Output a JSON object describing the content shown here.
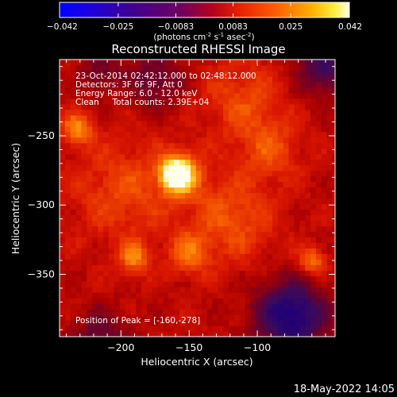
{
  "colorbar": {
    "ticks": [
      "-0.042",
      "-0.025",
      "-0.0083",
      "0.0083",
      "0.025",
      "0.042"
    ],
    "tick_values": [
      -0.042,
      -0.025,
      -0.0083,
      0.0083,
      0.025,
      0.042
    ],
    "range": [
      -0.042,
      0.042
    ],
    "colormap": "rainbow-like: blue-purple-red-orange-yellow-white",
    "units_parts": [
      "(photons cm",
      "-2",
      " s",
      "-1",
      " asec",
      "-2",
      ")"
    ]
  },
  "chart_data": {
    "type": "heatmap",
    "title": "Reconstructed RHESSI Image",
    "xlabel": "Heliocentric X (arcsec)",
    "ylabel": "Heliocentric Y (arcsec)",
    "xlim": [
      -245,
      -43
    ],
    "ylim": [
      -395,
      -195
    ],
    "xticks": [
      -200,
      -150,
      -100
    ],
    "xtick_labels": [
      "−200",
      "−150",
      "−100"
    ],
    "yticks": [
      -250,
      -300,
      -350
    ],
    "ytick_labels": [
      "−250",
      "−300",
      "−350"
    ],
    "peak": {
      "x": -160,
      "y": -278
    },
    "annotations": [
      "23-Oct-2014 02:42:12.000 to 02:48:12.000",
      "Detectors: 3F 6F 9F, Att 0",
      "Energy Range: 6.0 - 12.0 keV",
      "Clean     Total counts: 2.39E+04"
    ],
    "peak_label": "Position of Peak = [-160,-278]",
    "intensity_blobs": [
      {
        "x": -160,
        "y": -278,
        "value": 1.0,
        "sigma": 6
      },
      {
        "x": -157,
        "y": -277,
        "value": 0.85,
        "sigma": 11
      },
      {
        "x": -232,
        "y": -245,
        "value": 0.6,
        "sigma": 8
      },
      {
        "x": -198,
        "y": -290,
        "value": 0.35,
        "sigma": 25
      },
      {
        "x": -120,
        "y": -310,
        "value": 0.4,
        "sigma": 22
      },
      {
        "x": -190,
        "y": -338,
        "value": 0.55,
        "sigma": 8
      },
      {
        "x": -150,
        "y": -335,
        "value": 0.45,
        "sigma": 10
      },
      {
        "x": -60,
        "y": -340,
        "value": 0.55,
        "sigma": 7
      },
      {
        "x": -110,
        "y": -225,
        "value": 0.35,
        "sigma": 20
      },
      {
        "x": -90,
        "y": -260,
        "value": 0.35,
        "sigma": 15
      }
    ],
    "dark_regions": [
      {
        "x": -75,
        "y": -380,
        "value": -0.9,
        "sigma": 18
      },
      {
        "x": -50,
        "y": -200,
        "value": -0.6,
        "sigma": 14
      },
      {
        "x": -175,
        "y": -210,
        "value": -0.4,
        "sigma": 14
      },
      {
        "x": -215,
        "y": -395,
        "value": -0.4,
        "sigma": 14
      },
      {
        "x": -215,
        "y": -205,
        "value": -0.35,
        "sigma": 10
      }
    ]
  },
  "footer": {
    "date": "18-May-2022 14:05"
  }
}
